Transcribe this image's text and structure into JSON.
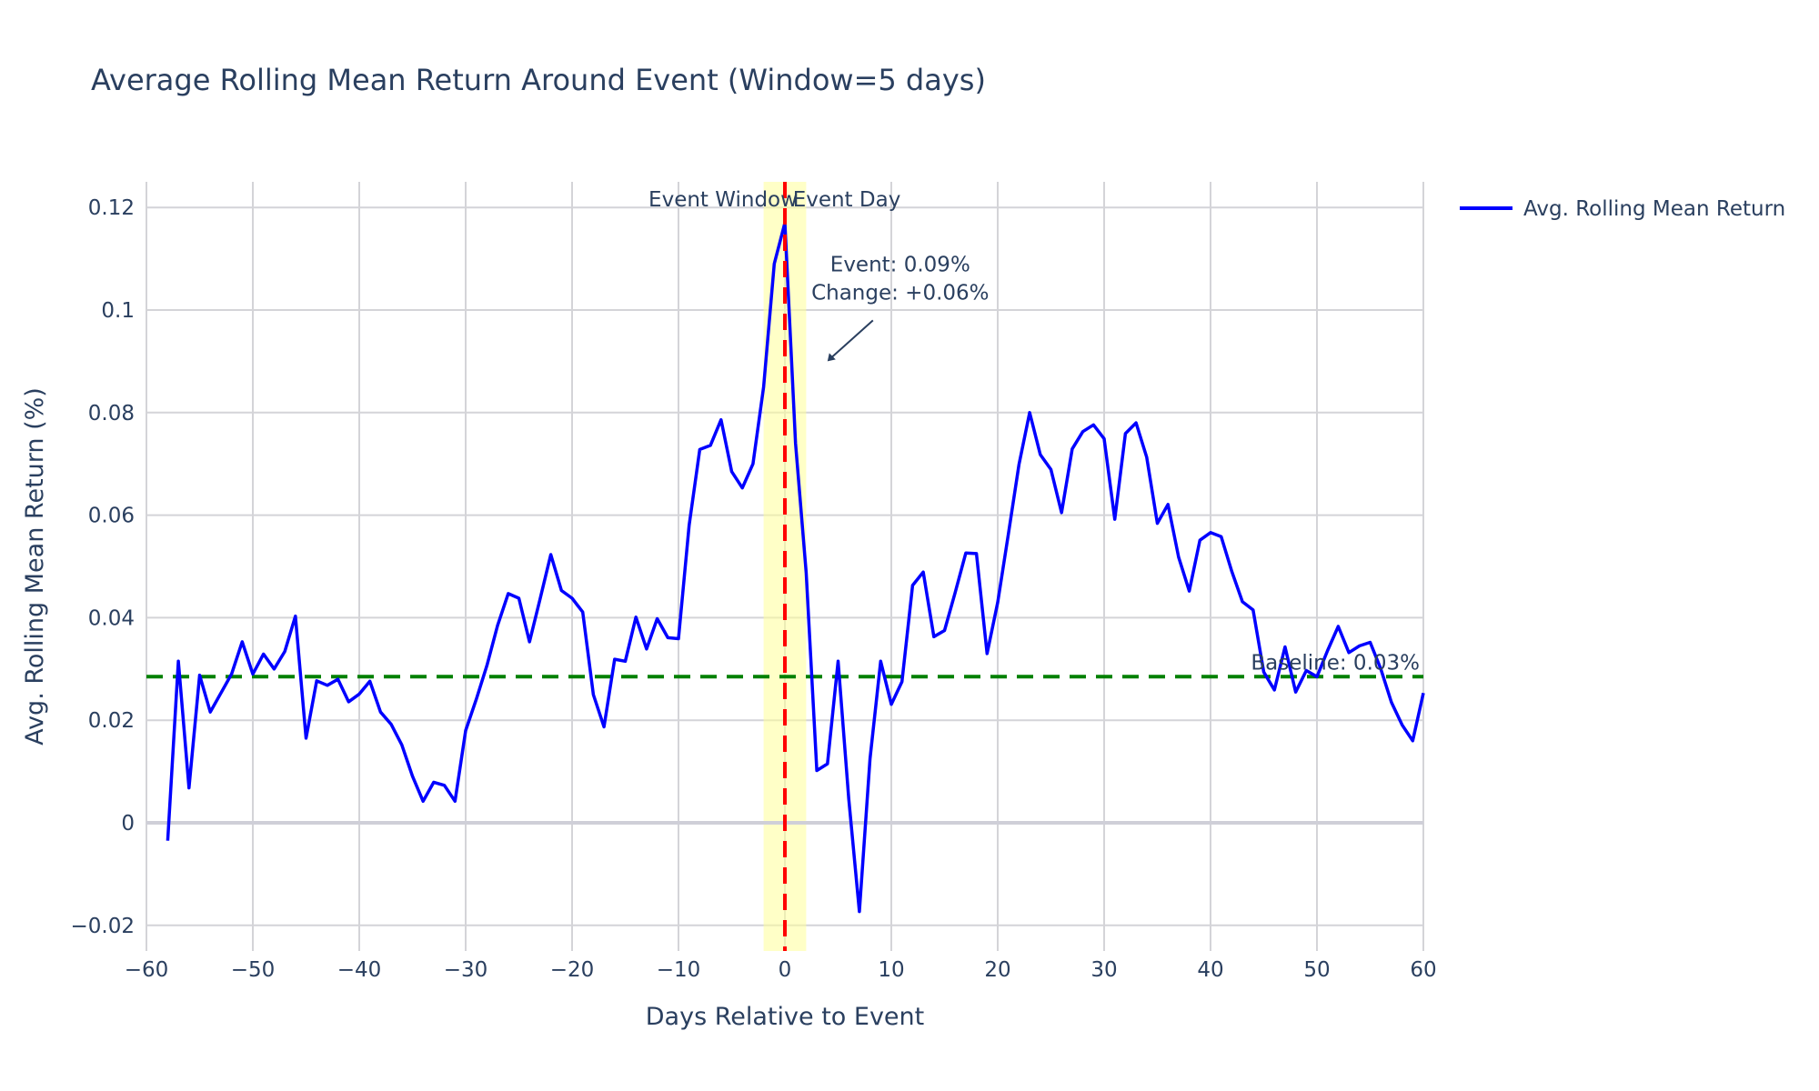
{
  "chart_data": {
    "type": "line",
    "title": "Average Rolling Mean Return Around Event (Window=5 days)",
    "xlabel": "Days Relative to Event",
    "ylabel": "Avg. Rolling Mean Return (%)",
    "xlim": [
      -60,
      60
    ],
    "ylim": [
      -0.025,
      0.125
    ],
    "xticks": [
      -60,
      -50,
      -40,
      -30,
      -20,
      -10,
      0,
      10,
      20,
      30,
      40,
      50,
      60
    ],
    "xtick_labels": [
      "−60",
      "−50",
      "−40",
      "−30",
      "−20",
      "−10",
      "0",
      "10",
      "20",
      "30",
      "40",
      "50",
      "60"
    ],
    "yticks": [
      -0.02,
      0,
      0.02,
      0.04,
      0.06,
      0.08,
      0.1,
      0.12
    ],
    "ytick_labels": [
      "−0.02",
      "0",
      "0.02",
      "0.04",
      "0.06",
      "0.08",
      "0.1",
      "0.12"
    ],
    "grid": true,
    "legend_position": "top-right",
    "series": [
      {
        "name": "Avg. Rolling Mean Return",
        "color": "#0000ff",
        "x": [
          -58,
          -57,
          -56,
          -55,
          -54,
          -53,
          -52,
          -51,
          -50,
          -49,
          -48,
          -47,
          -46,
          -45,
          -44,
          -43,
          -42,
          -41,
          -40,
          -39,
          -38,
          -37,
          -36,
          -35,
          -34,
          -33,
          -32,
          -31,
          -30,
          -29,
          -28,
          -27,
          -26,
          -25,
          -24,
          -23,
          -22,
          -21,
          -20,
          -19,
          -18,
          -17,
          -16,
          -15,
          -14,
          -13,
          -12,
          -11,
          -10,
          -9,
          -8,
          -7,
          -6,
          -5,
          -4,
          -3,
          -2,
          -1,
          0,
          1,
          2,
          3,
          4,
          5,
          6,
          7,
          8,
          9,
          10,
          11,
          12,
          13,
          14,
          15,
          16,
          17,
          18,
          19,
          20,
          21,
          22,
          23,
          24,
          25,
          26,
          27,
          28,
          29,
          30,
          31,
          32,
          33,
          34,
          35,
          36,
          37,
          38,
          39,
          40,
          41,
          42,
          43,
          44,
          45,
          46,
          47,
          48,
          49,
          50,
          51,
          52,
          53,
          54,
          55,
          56,
          57,
          58,
          59,
          60
        ],
        "y": [
          -0.0035,
          0.0315,
          0.0068,
          0.0288,
          0.0216,
          0.0253,
          0.029,
          0.0353,
          0.029,
          0.0329,
          0.03,
          0.0334,
          0.0403,
          0.0165,
          0.0277,
          0.0268,
          0.028,
          0.0236,
          0.0251,
          0.0276,
          0.0216,
          0.0192,
          0.0152,
          0.0091,
          0.0042,
          0.0079,
          0.0073,
          0.0042,
          0.018,
          0.0241,
          0.0307,
          0.0385,
          0.0447,
          0.0438,
          0.0353,
          0.0437,
          0.0523,
          0.0453,
          0.0438,
          0.0411,
          0.025,
          0.0187,
          0.0319,
          0.0315,
          0.0401,
          0.0339,
          0.0398,
          0.0361,
          0.0359,
          0.058,
          0.0728,
          0.0736,
          0.0786,
          0.0685,
          0.0653,
          0.07,
          0.085,
          0.109,
          0.117,
          0.074,
          0.0488,
          0.0102,
          0.0115,
          0.0315,
          0.0047,
          -0.0173,
          0.0125,
          0.0315,
          0.0231,
          0.0275,
          0.0463,
          0.0489,
          0.0363,
          0.0375,
          0.0449,
          0.0526,
          0.0525,
          0.033,
          0.043,
          0.0563,
          0.0699,
          0.08,
          0.0718,
          0.0689,
          0.0605,
          0.0729,
          0.0763,
          0.0776,
          0.0749,
          0.0592,
          0.0759,
          0.078,
          0.0713,
          0.0584,
          0.0621,
          0.0518,
          0.0452,
          0.0551,
          0.0566,
          0.0558,
          0.049,
          0.0431,
          0.0415,
          0.0294,
          0.0259,
          0.0343,
          0.0255,
          0.0297,
          0.0285,
          0.0336,
          0.0383,
          0.0332,
          0.0345,
          0.0352,
          0.03,
          0.0235,
          0.0191,
          0.016,
          0.0253
        ]
      }
    ],
    "baseline": {
      "value": 0.0285,
      "label": "Baseline: 0.03%",
      "color": "#008000"
    },
    "event_line": {
      "x": 0,
      "label": "Event Day",
      "color": "#ff0000"
    },
    "event_window": {
      "x0": -2,
      "x1": 2,
      "label": "Event Window",
      "color": "#ffff99"
    },
    "annotation": {
      "x": 4,
      "y": 0.09,
      "lines": [
        "Event: 0.09%",
        "Change: +0.06%"
      ]
    }
  }
}
